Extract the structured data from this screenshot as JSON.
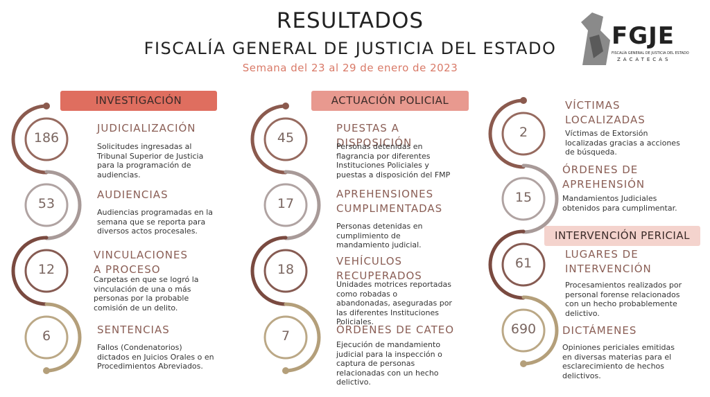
{
  "header": {
    "title": "RESULTADOS",
    "subtitle": "FISCALÍA GENERAL DE JUSTICIA DEL ESTADO",
    "week": "Semana del 23 al 29 de enero de 2023"
  },
  "logo": {
    "acronym": "FGJE",
    "name": "FISCALÍA GENERAL DE JUSTICIA DEL ESTADO",
    "state": "ZACATECAS"
  },
  "sections": [
    {
      "heading": "INVESTIGACIÓN",
      "items": [
        {
          "value": 186,
          "title": "JUDICIALIZACIÓN",
          "description": "Solicitudes ingresadas al Tribunal Superior de Justicia para la programación de audiencias."
        },
        {
          "value": 53,
          "title": "AUDIENCIAS",
          "description": "Audiencias programadas en la semana que se reporta para diversos actos procesales."
        },
        {
          "value": 12,
          "title": "VINCULACIONES A PROCESO",
          "description": "Carpetas en que se logró la vinculación de una o más personas por la probable comisión de un delito."
        },
        {
          "value": 6,
          "title": "SENTENCIAS",
          "description": "Fallos (Condenatorios) dictados en Juicios Orales o en Procedimientos Abreviados."
        }
      ]
    },
    {
      "heading": "ACTUACIÓN POLICIAL",
      "items": [
        {
          "value": 45,
          "title": "PUESTAS A DISPOSICIÓN",
          "description": "Personas detenidas en flagrancia por diferentes Instituciones Policiales y puestas a disposición del FMP"
        },
        {
          "value": 17,
          "title": "APREHENSIONES CUMPLIMENTADAS",
          "description": "Personas detenidas en cumplimiento de mandamiento judicial."
        },
        {
          "value": 18,
          "title": "VEHÍCULOS RECUPERADOS",
          "description": "Unidades motrices reportadas como robadas o abandonadas, aseguradas por las diferentes Instituciones Policiales."
        },
        {
          "value": 7,
          "title": "ÓRDENES DE CATEO",
          "description": "Ejecución de mandamiento judicial para la inspección o captura de personas relacionadas con un hecho delictivo."
        }
      ]
    },
    {
      "items": [
        {
          "value": 2,
          "title": "VÍCTIMAS LOCALIZADAS",
          "description": "Víctimas de Extorsión localizadas gracias a acciones de búsqueda."
        },
        {
          "value": 15,
          "title": "ÓRDENES DE APREHENSIÓN",
          "description": "Mandamientos Judiciales obtenidos para cumplimentar."
        }
      ]
    },
    {
      "heading": "INTERVENCIÓN PERICIAL",
      "items": [
        {
          "value": 61,
          "title": "LUGARES DE INTERVENCIÓN",
          "description": "Procesamientos realizados por personal forense relacionados con un hecho probablemente delictivo."
        },
        {
          "value": 690,
          "title": "DICTÁMENES",
          "description": "Opiniones periciales emitidas en diversas materias para el esclarecimiento de hechos delictivos."
        }
      ]
    }
  ]
}
